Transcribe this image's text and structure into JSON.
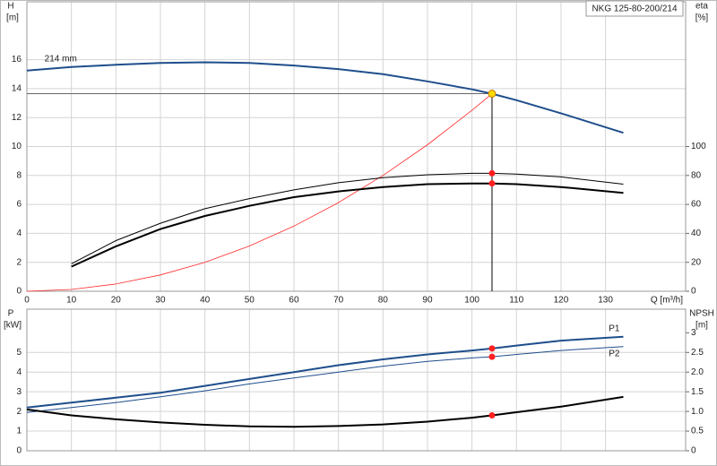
{
  "chart_data": [
    {
      "type": "line",
      "title": "NKG 125-80-200/214",
      "y_label": "H",
      "y_unit": "[m]",
      "y2_label": "eta",
      "y2_unit": "[%]",
      "x_label": "Q [m³/h]",
      "annotation": "214 mm",
      "xlim": [
        0,
        148
      ],
      "xticks": [
        0,
        10,
        20,
        30,
        40,
        50,
        60,
        70,
        80,
        90,
        100,
        110,
        120,
        130
      ],
      "ylim": [
        0,
        20
      ],
      "yticks": [
        0,
        2,
        4,
        6,
        8,
        10,
        12,
        14,
        16
      ],
      "y2lim": [
        0,
        200
      ],
      "y2ticks": [
        0,
        20,
        40,
        60,
        80,
        100
      ],
      "grid": true,
      "series": [
        {
          "color": "#1f4e8c",
          "width": 2,
          "x": [
            0,
            10,
            20,
            30,
            40,
            50,
            60,
            70,
            80,
            90,
            100,
            104.5,
            110,
            120,
            134
          ],
          "values": [
            15.25,
            15.5,
            15.65,
            15.78,
            15.82,
            15.78,
            15.6,
            15.35,
            15.0,
            14.5,
            13.95,
            13.65,
            13.2,
            12.3,
            10.95
          ]
        },
        {
          "color": "#ff2a2a",
          "width": 0.8,
          "x": [
            0,
            10,
            20,
            30,
            40,
            50,
            60,
            70,
            80,
            90,
            100,
            104.5
          ],
          "values": [
            0,
            0.125,
            0.5,
            1.125,
            2,
            3.125,
            4.5,
            6.125,
            8,
            10.125,
            12.5,
            13.65
          ]
        },
        {
          "color": "#000000",
          "width": 1,
          "axis": "y2",
          "x": [
            10,
            20,
            30,
            40,
            50,
            60,
            70,
            80,
            90,
            100,
            104.5,
            110,
            120,
            134
          ],
          "values": [
            19,
            35,
            47,
            57,
            64,
            70,
            75,
            78.5,
            80.5,
            81.5,
            81.5,
            81,
            79,
            74
          ]
        },
        {
          "color": "#000000",
          "width": 2,
          "axis": "y2",
          "x": [
            10,
            20,
            30,
            40,
            50,
            60,
            70,
            80,
            90,
            100,
            104.5,
            110,
            120,
            134
          ],
          "values": [
            17,
            31,
            43,
            52,
            59,
            65,
            69,
            72,
            74,
            74.5,
            74.5,
            74,
            72,
            68
          ]
        }
      ],
      "duty_point": {
        "x": 104.5,
        "y": 13.65,
        "color": "#ffd700"
      },
      "points": [
        {
          "x": 104.5,
          "y": 81.5,
          "axis": "y2",
          "color": "#ff2020"
        },
        {
          "x": 104.5,
          "y": 74.5,
          "axis": "y2",
          "color": "#ff2020"
        }
      ]
    },
    {
      "type": "line",
      "y_label": "P",
      "y_unit": "[kW]",
      "y2_label": "NPSH",
      "y2_unit": "[m]",
      "xlim": [
        0,
        148
      ],
      "ylim": [
        0,
        7.2
      ],
      "yticks": [
        0,
        1,
        2,
        3,
        4,
        5
      ],
      "y2lim": [
        0,
        3.6
      ],
      "y2ticks": [
        0,
        0.5,
        {
          "value": 1,
          "label": "1.0"
        },
        1.5,
        {
          "value": 2,
          "label": "2.0"
        },
        2.5,
        3
      ],
      "grid": true,
      "series": [
        {
          "name": "P1",
          "color": "#1f4e8c",
          "width": 2,
          "x": [
            0,
            10,
            20,
            30,
            40,
            50,
            60,
            70,
            80,
            90,
            100,
            104.5,
            110,
            120,
            134
          ],
          "values": [
            2.2,
            2.45,
            2.7,
            2.95,
            3.3,
            3.65,
            4.0,
            4.35,
            4.65,
            4.9,
            5.1,
            5.2,
            5.35,
            5.6,
            5.8
          ]
        },
        {
          "name": "P2",
          "color": "#1f4e8c",
          "width": 1,
          "x": [
            0,
            10,
            20,
            30,
            40,
            50,
            60,
            70,
            80,
            90,
            100,
            104.5,
            110,
            120,
            134
          ],
          "values": [
            1.95,
            2.2,
            2.45,
            2.75,
            3.05,
            3.4,
            3.7,
            4.0,
            4.3,
            4.55,
            4.72,
            4.78,
            4.9,
            5.1,
            5.3
          ]
        },
        {
          "color": "#000000",
          "width": 2,
          "axis": "y2",
          "x": [
            0,
            10,
            20,
            30,
            40,
            50,
            60,
            70,
            80,
            90,
            100,
            104.5,
            110,
            120,
            134
          ],
          "values": [
            1.05,
            0.9,
            0.8,
            0.72,
            0.66,
            0.62,
            0.61,
            0.63,
            0.67,
            0.74,
            0.84,
            0.9,
            0.98,
            1.12,
            1.37
          ]
        }
      ],
      "points": [
        {
          "x": 104.5,
          "y": 5.2,
          "color": "#ff2020"
        },
        {
          "x": 104.5,
          "y": 4.78,
          "color": "#ff2020"
        },
        {
          "x": 104.5,
          "y": 0.9,
          "axis": "y2",
          "color": "#ff2020"
        }
      ]
    }
  ]
}
